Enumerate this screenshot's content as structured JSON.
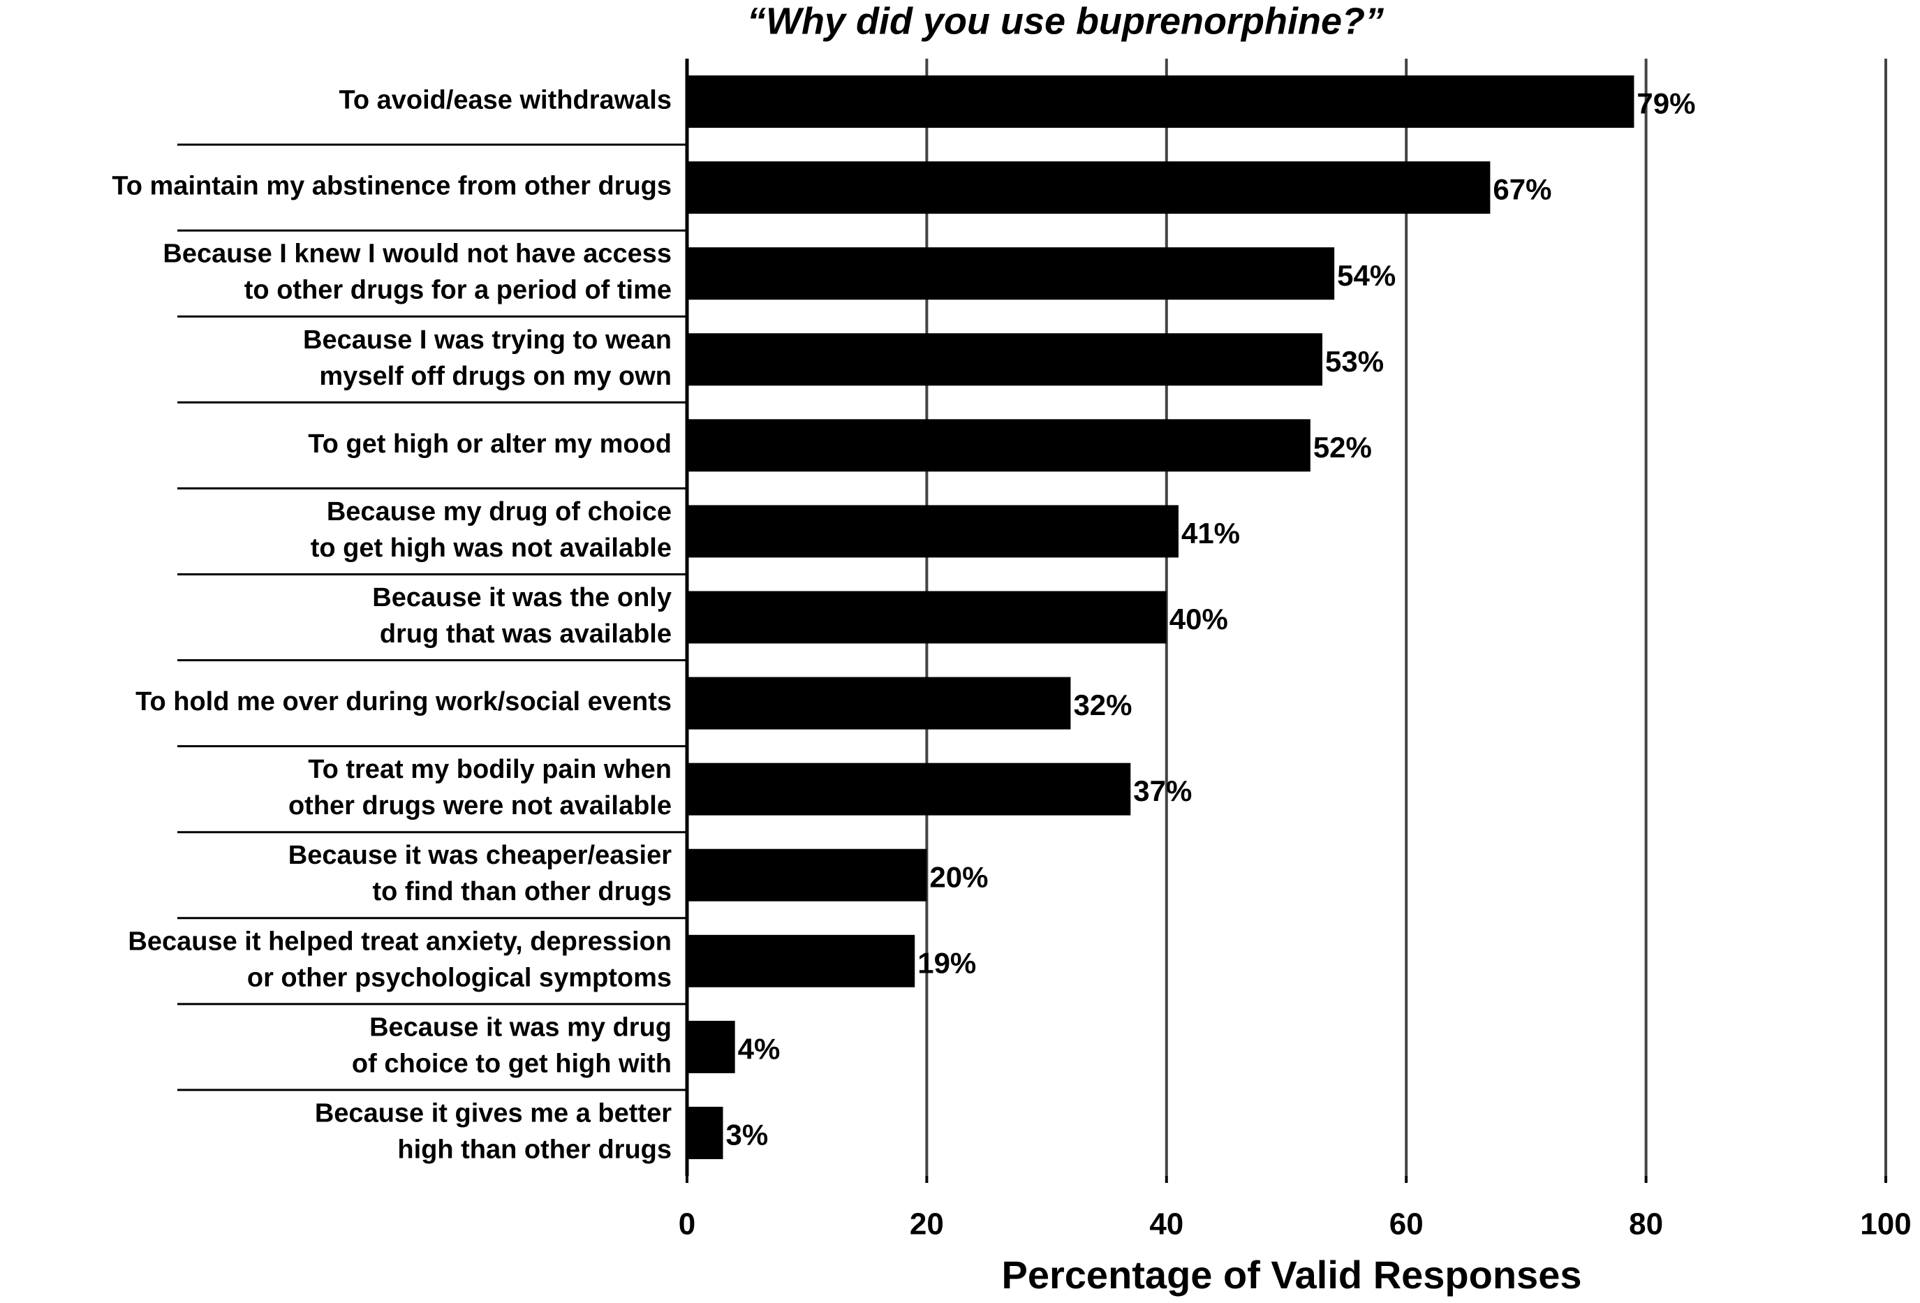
{
  "chart_data": {
    "type": "barh",
    "title": "“Why did you use buprenorphine?”",
    "x_label": "Percentage of Valid Responses",
    "categories": [
      "To avoid/ease withdrawals",
      "To maintain my abstinence from other drugs",
      "Because I knew I would not have access\nto other drugs for a period of time",
      "Because I was trying to wean\nmyself off drugs on my own",
      "To get high or alter my mood",
      "Because my drug of choice\nto get high was not available",
      "Because it was the only\ndrug that was available",
      "To hold me over during work/social events",
      "To treat my bodily pain when\nother drugs were not available",
      "Because it was cheaper/easier\nto find than other drugs",
      "Because it helped treat anxiety, depression\nor other psychological symptoms",
      "Because it was my drug\nof choice to get high with",
      "Because it gives me a better\nhigh than other drugs"
    ],
    "values": [
      79,
      67,
      54,
      53,
      52,
      41,
      40,
      32,
      37,
      20,
      19,
      4,
      3
    ],
    "value_labels": [
      "79%",
      "67%",
      "54%",
      "53%",
      "52%",
      "41%",
      "40%",
      "32%",
      "37%",
      "20%",
      "19%",
      "4%",
      "3%"
    ],
    "color": "#000000",
    "xlim": [
      0,
      100
    ],
    "xticks": [
      0,
      20,
      40,
      60,
      80,
      100
    ],
    "grid": true
  }
}
